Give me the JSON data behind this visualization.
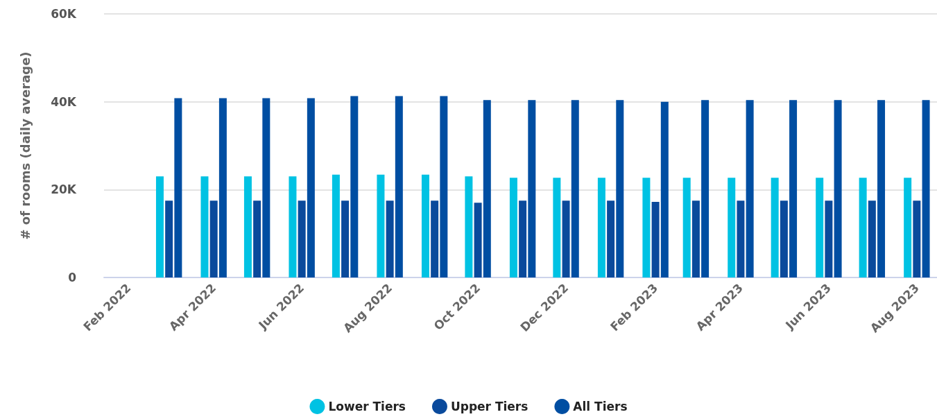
{
  "chart_data": {
    "type": "bar",
    "ylabel": "# of rooms (daily average)",
    "x": [
      "2022-03",
      "2022-04",
      "2022-05",
      "2022-06",
      "2022-07",
      "2022-08",
      "2022-09",
      "2022-10",
      "2022-11",
      "2022-12",
      "2023-01",
      "2023-02",
      "2023-03",
      "2023-04",
      "2023-05",
      "2023-06",
      "2023-07",
      "2023-08"
    ],
    "series": [
      {
        "name": "Lower Tiers",
        "color": "#00c2e3",
        "values": [
          23000,
          23000,
          23000,
          23000,
          23400,
          23400,
          23400,
          23000,
          22700,
          22700,
          22700,
          22700,
          22700,
          22700,
          22700,
          22700,
          22700,
          22700
        ]
      },
      {
        "name": "Upper Tiers",
        "color": "#0a4a9c",
        "values": [
          17500,
          17500,
          17500,
          17500,
          17500,
          17500,
          17500,
          17000,
          17500,
          17500,
          17500,
          17200,
          17500,
          17500,
          17500,
          17500,
          17500,
          17500
        ]
      },
      {
        "name": "All Tiers",
        "color": "#004ea2",
        "values": [
          40800,
          40800,
          40800,
          40800,
          41300,
          41300,
          41300,
          40400,
          40400,
          40400,
          40400,
          40000,
          40400,
          40400,
          40400,
          40400,
          40400,
          40400
        ]
      }
    ],
    "xlim": [
      "2022-01-15",
      "2023-08-15"
    ],
    "xticks": [
      {
        "value": "2022-02",
        "label": "Feb 2022"
      },
      {
        "value": "2022-04",
        "label": "Apr 2022"
      },
      {
        "value": "2022-06",
        "label": "Jun 2022"
      },
      {
        "value": "2022-08",
        "label": "Aug 2022"
      },
      {
        "value": "2022-10",
        "label": "Oct 2022"
      },
      {
        "value": "2022-12",
        "label": "Dec 2022"
      },
      {
        "value": "2023-02",
        "label": "Feb 2023"
      },
      {
        "value": "2023-04",
        "label": "Apr 2023"
      },
      {
        "value": "2023-06",
        "label": "Jun 2023"
      },
      {
        "value": "2023-08",
        "label": "Aug 2023"
      }
    ],
    "ylim": [
      0,
      60000
    ],
    "yticks": [
      {
        "value": 0,
        "label": "0"
      },
      {
        "value": 20000,
        "label": "20K"
      },
      {
        "value": 40000,
        "label": "40K"
      },
      {
        "value": 60000,
        "label": "60K"
      }
    ],
    "grid": "y",
    "legend": "bottom"
  }
}
